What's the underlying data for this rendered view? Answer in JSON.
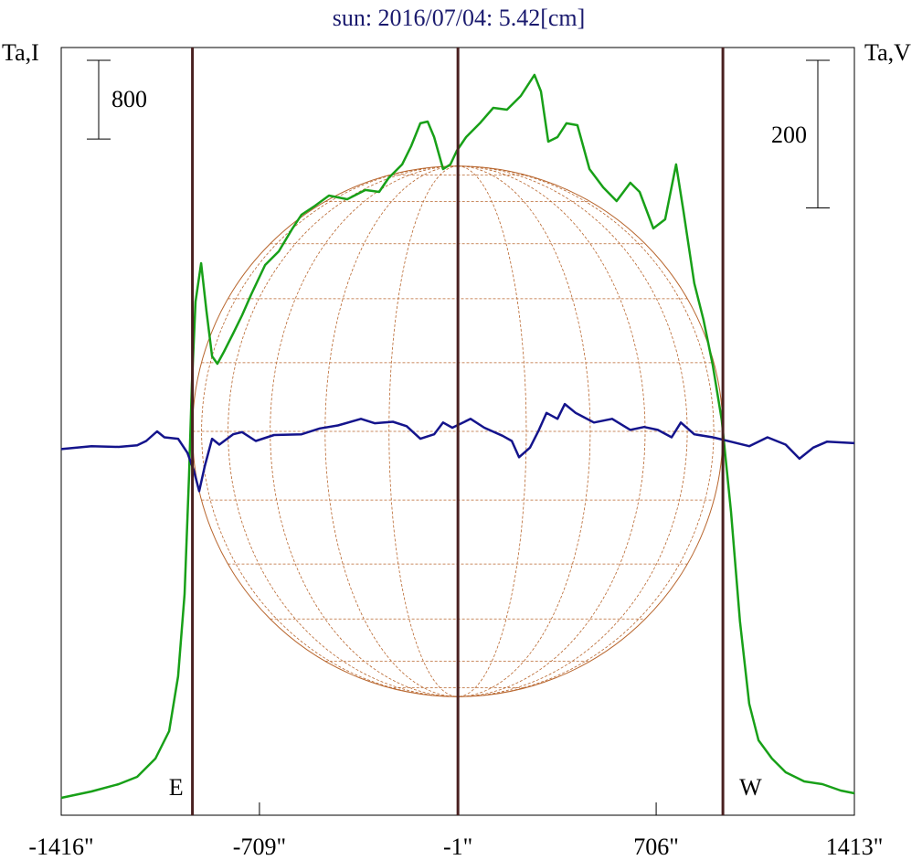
{
  "chart_data": {
    "type": "line",
    "title": "sun: 2016/07/04: 5.42[cm]",
    "y_label": "Ta,I",
    "y2_label": "Ta,V",
    "xlim": [
      -1416,
      1413
    ],
    "xticks": [
      {
        "value": -1416,
        "label": "-1416\""
      },
      {
        "value": -709,
        "label": "-709\""
      },
      {
        "value": -1,
        "label": "-1\""
      },
      {
        "value": 706,
        "label": "706\""
      },
      {
        "value": 1413,
        "label": "1413\""
      }
    ],
    "ylim": [
      0,
      7800
    ],
    "y2lim": [
      -500,
      540
    ],
    "scale_bars": [
      {
        "value": 800,
        "axis": "y"
      },
      {
        "value": 200,
        "axis": "y2"
      }
    ],
    "markers": [
      {
        "x": -948,
        "label": "E"
      },
      {
        "x": -1
      },
      {
        "x": 944,
        "label": "W"
      }
    ],
    "series": [
      {
        "color": "#18a018",
        "axis": "y",
        "x": [
          -1416,
          -1308,
          -1211,
          -1145,
          -1080,
          -1031,
          -999,
          -976,
          -960,
          -950,
          -937,
          -917,
          -898,
          -878,
          -859,
          -836,
          -803,
          -771,
          -738,
          -689,
          -640,
          -591,
          -559,
          -510,
          -461,
          -396,
          -331,
          -282,
          -249,
          -200,
          -168,
          -135,
          -109,
          -86,
          -54,
          -28,
          -5,
          28,
          77,
          125,
          174,
          223,
          272,
          295,
          321,
          354,
          386,
          425,
          468,
          517,
          565,
          614,
          647,
          696,
          738,
          777,
          803,
          842,
          875,
          908,
          940,
          973,
          1005,
          1038,
          1071,
          1119,
          1168,
          1234,
          1299,
          1364,
          1413
        ],
        "values": [
          176,
          241,
          316,
          390,
          576,
          854,
          1411,
          2247,
          3454,
          4383,
          5219,
          5609,
          5126,
          4662,
          4587,
          4708,
          4894,
          5079,
          5293,
          5590,
          5729,
          5962,
          6101,
          6194,
          6296,
          6259,
          6352,
          6333,
          6472,
          6612,
          6797,
          7030,
          7048,
          6890,
          6565,
          6612,
          6751,
          6890,
          7030,
          7187,
          7169,
          7308,
          7522,
          7354,
          6844,
          6890,
          7030,
          7011,
          6565,
          6379,
          6240,
          6426,
          6333,
          5962,
          6054,
          6612,
          6147,
          5404,
          5033,
          4569,
          4012,
          3083,
          1969,
          1133,
          761,
          576,
          436,
          344,
          316,
          251,
          223
        ]
      },
      {
        "color": "#14148c",
        "axis": "y2",
        "x": [
          -1416,
          -1308,
          -1211,
          -1145,
          -1113,
          -1074,
          -1048,
          -999,
          -966,
          -943,
          -924,
          -904,
          -878,
          -852,
          -803,
          -771,
          -722,
          -657,
          -559,
          -494,
          -429,
          -347,
          -298,
          -233,
          -184,
          -135,
          -86,
          -54,
          -21,
          44,
          93,
          158,
          191,
          217,
          256,
          288,
          315,
          354,
          380,
          419,
          484,
          549,
          614,
          663,
          712,
          761,
          794,
          842,
          908,
          973,
          1038,
          1103,
          1168,
          1217,
          1266,
          1315,
          1413
        ],
        "values": [
          -4,
          0,
          -1,
          1,
          7,
          20,
          12,
          10,
          -9,
          -33,
          -61,
          -27,
          10,
          2,
          16,
          19,
          7,
          15,
          16,
          24,
          28,
          37,
          31,
          33,
          27,
          10,
          16,
          32,
          25,
          37,
          25,
          14,
          7,
          -15,
          -2,
          22,
          45,
          37,
          57,
          45,
          32,
          37,
          22,
          26,
          22,
          12,
          32,
          16,
          12,
          6,
          0,
          12,
          2,
          -17,
          -2,
          6,
          4
        ]
      }
    ]
  }
}
